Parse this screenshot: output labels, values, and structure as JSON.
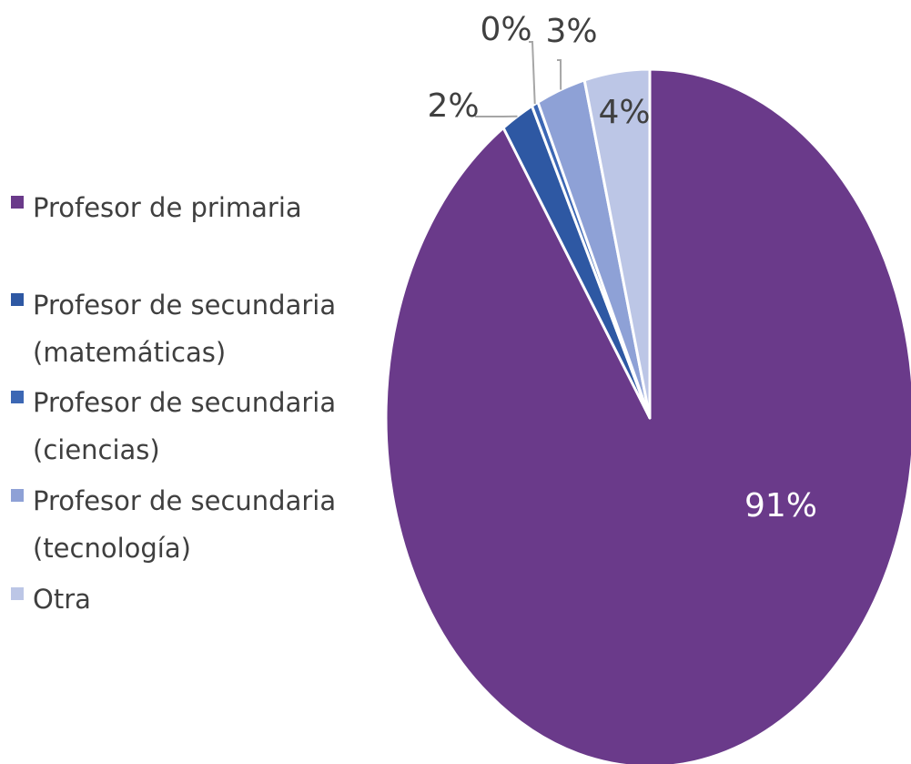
{
  "chart_data": {
    "type": "pie",
    "legend_position": "left",
    "series": [
      {
        "label": "Profesor de primaria",
        "legend_lines": [
          "Profesor de primaria"
        ],
        "value": 91,
        "display": "91%",
        "color": "#6a3a8a"
      },
      {
        "label": "Profesor de secundaria (matemáticas)",
        "legend_lines": [
          "Profesor de secundaria",
          "(matemáticas)"
        ],
        "value": 2,
        "display": "2%",
        "color": "#2e58a3"
      },
      {
        "label": "Profesor de secundaria (ciencias)",
        "legend_lines": [
          "Profesor de secundaria",
          "(ciencias)"
        ],
        "value": 0.4,
        "display": "0%",
        "color": "#3c67b4"
      },
      {
        "label": "Profesor de secundaria (tecnología)",
        "legend_lines": [
          "Profesor de secundaria",
          "(tecnología)"
        ],
        "value": 3,
        "display": "3%",
        "color": "#8ea1d6"
      },
      {
        "label": "Otra",
        "legend_lines": [
          "Otra"
        ],
        "value": 4,
        "display": "4%",
        "color": "#bcc6e6"
      }
    ]
  }
}
